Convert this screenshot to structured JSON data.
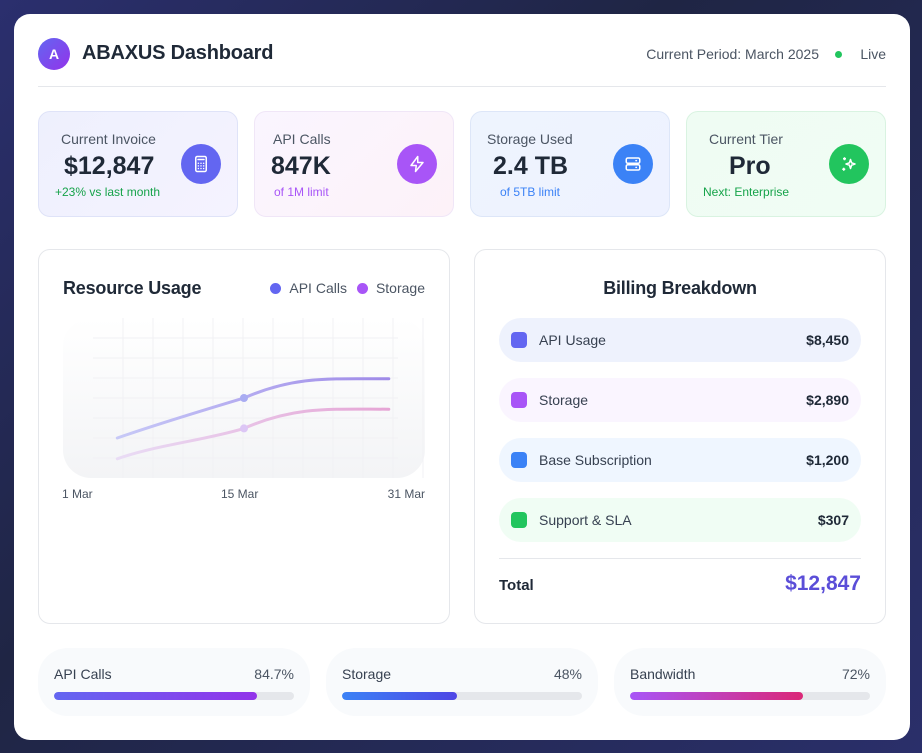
{
  "header": {
    "logo_letter": "A",
    "title": "ABAXUS Dashboard",
    "period": "Current Period: March 2025",
    "status": "Live",
    "status_color": "#22c55e"
  },
  "stats": [
    {
      "label": "Current Invoice",
      "value": "$12,847",
      "sub": "+23% vs last month",
      "sub_color": "#16a34a",
      "icon": "calculator-icon",
      "icon_color": "#6366f1"
    },
    {
      "label": "API Calls",
      "value": "847K",
      "sub": "of 1M limit",
      "sub_color": "#a855f7",
      "icon": "lightning-icon",
      "icon_color": "#a855f7"
    },
    {
      "label": "Storage Used",
      "value": "2.4 TB",
      "sub": "of 5TB limit",
      "sub_color": "#3b82f6",
      "icon": "server-icon",
      "icon_color": "#3b82f6"
    },
    {
      "label": "Current Tier",
      "value": "Pro",
      "sub": "Next: Enterprise",
      "sub_color": "#16a34a",
      "icon": "sparkles-icon",
      "icon_color": "#22c55e"
    }
  ],
  "usage": {
    "title": "Resource Usage",
    "legend": [
      {
        "name": "API Calls",
        "color": "#6366f1"
      },
      {
        "name": "Storage",
        "color": "#a855f7"
      }
    ],
    "x_labels": [
      "1 Mar",
      "15 Mar",
      "31 Mar"
    ]
  },
  "chart_data": {
    "type": "line",
    "title": "Resource Usage",
    "xlabel": "",
    "ylabel": "",
    "x_ticks": [
      "1 Mar",
      "15 Mar",
      "31 Mar"
    ],
    "x": [
      0.15,
      0.5,
      0.9
    ],
    "ylim": [
      0,
      1
    ],
    "grid": true,
    "legend": "top-right",
    "series": [
      {
        "name": "API Calls",
        "values": [
          0.25,
          0.5,
          0.62
        ]
      },
      {
        "name": "Storage",
        "values": [
          0.12,
          0.31,
          0.43
        ]
      }
    ]
  },
  "billing": {
    "title": "Billing Breakdown",
    "items": [
      {
        "name": "API Usage",
        "amount": "$8,450",
        "color": "#6366f1",
        "bg": "#eef2fd"
      },
      {
        "name": "Storage",
        "amount": "$2,890",
        "color": "#a855f7",
        "bg": "#faf5ff"
      },
      {
        "name": "Base Subscription",
        "amount": "$1,200",
        "color": "#3b82f6",
        "bg": "#eff6ff"
      },
      {
        "name": "Support & SLA",
        "amount": "$307",
        "color": "#22c55e",
        "bg": "#f0fdf4"
      }
    ],
    "total_label": "Total",
    "total_value": "$12,847"
  },
  "progress": [
    {
      "label": "API Calls",
      "value_text": "84.7%",
      "fraction": 0.847,
      "from": "#6366f1",
      "to": "#9333ea"
    },
    {
      "label": "Storage",
      "value_text": "48%",
      "fraction": 0.48,
      "from": "#3b82f6",
      "to": "#4f46e5"
    },
    {
      "label": "Bandwidth",
      "value_text": "72%",
      "fraction": 0.72,
      "from": "#a855f7",
      "to": "#db2777"
    }
  ]
}
